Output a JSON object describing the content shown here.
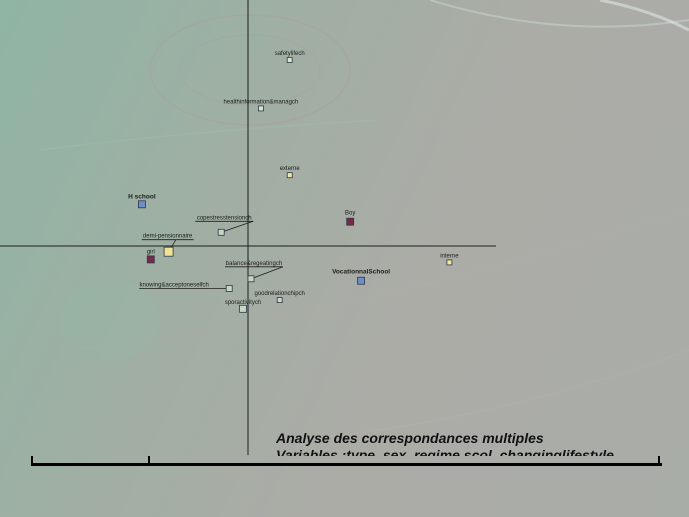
{
  "chart_data": {
    "type": "scatter",
    "title": "",
    "xlabel": "",
    "ylabel": "",
    "xlim": [
      -2.5,
      2.5
    ],
    "ylim": [
      -2.2,
      2.5
    ],
    "points": [
      {
        "label": "safetylifech",
        "x": 0.42,
        "y": 1.88,
        "color": "#d8e3cf",
        "size": 5,
        "bold": false
      },
      {
        "label": "healthinformation&managch",
        "x": 0.13,
        "y": 1.38,
        "color": "#d8e3cf",
        "size": 5,
        "bold": false
      },
      {
        "label": "externe",
        "x": 0.42,
        "y": 0.69,
        "color": "#f1e6a2",
        "size": 5,
        "bold": false
      },
      {
        "label": "H school",
        "x": -1.07,
        "y": 0.39,
        "color": "#6f8ec9",
        "size": 7,
        "bold": true
      },
      {
        "label": "Boy",
        "x": 1.03,
        "y": 0.21,
        "color": "#7a2848",
        "size": 7,
        "bold": false
      },
      {
        "label": "copestresstensionch",
        "x": -0.27,
        "y": 0.1,
        "color": "#c8d6c0",
        "size": 6,
        "bold": false
      },
      {
        "label": "demi-pensionnaire",
        "x": -0.8,
        "y": -0.1,
        "color": "#f2e293",
        "size": 9,
        "bold": false
      },
      {
        "label": "girl",
        "x": -0.98,
        "y": -0.18,
        "color": "#7a2848",
        "size": 7,
        "bold": false
      },
      {
        "label": "interne",
        "x": 2.03,
        "y": -0.21,
        "color": "#f1e6a2",
        "size": 5,
        "bold": false
      },
      {
        "label": "balance&regeatingch",
        "x": 0.03,
        "y": -0.38,
        "color": "#c8d6c0",
        "size": 6,
        "bold": false
      },
      {
        "label": "VocationnalSchool",
        "x": 1.14,
        "y": -0.4,
        "color": "#6f8ec9",
        "size": 7,
        "bold": true
      },
      {
        "label": "knowing&acceptoneselfch",
        "x": -0.19,
        "y": -0.48,
        "color": "#c8d6c0",
        "size": 6,
        "bold": false
      },
      {
        "label": "goodrelationchipch",
        "x": 0.32,
        "y": -0.6,
        "color": "#c8d6c0",
        "size": 5,
        "bold": false
      },
      {
        "label": "sporactivitych",
        "x": -0.05,
        "y": -0.69,
        "color": "#c8d6c0",
        "size": 7,
        "bold": false
      }
    ],
    "grid": false
  },
  "caption": {
    "line1": "Analyse des correspondances multiples",
    "line2": "Variables :type, sex, regime scol, changinglifestyle"
  }
}
